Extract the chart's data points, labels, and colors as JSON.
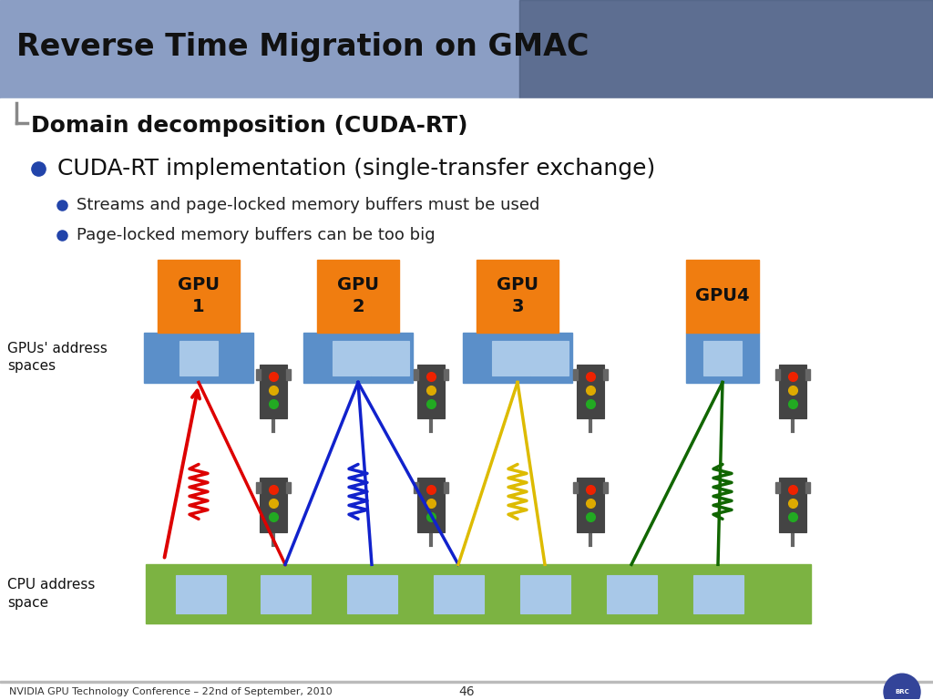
{
  "title": "Reverse Time Migration on GMAC",
  "subtitle": "Domain decomposition (CUDA-RT)",
  "bullet1": "CUDA-RT implementation (single-transfer exchange)",
  "bullet2": "Streams and page-locked memory buffers must be used",
  "bullet3": "Page-locked memory buffers can be too big",
  "footer_left": "NVIDIA GPU Technology Conference – 22nd of September, 2010",
  "footer_center": "46",
  "gpu_labels": [
    "GPU\n1",
    "GPU\n2",
    "GPU\n3",
    "GPU4"
  ],
  "gpu_color": "#F07D10",
  "gpu_base_color": "#5B8FC9",
  "gpu_slot_color": "#A8C8E8",
  "cpu_color": "#7CB342",
  "cpu_slot_color": "#A8C8E8",
  "bg_color": "#FFFFFF",
  "header_bg": "#8B9EC4",
  "title_color": "#111111",
  "subtitle_color": "#111111",
  "tl_body": "#444444",
  "tl_border": "#888888",
  "tl_red": "#EE2200",
  "tl_yellow": "#DDAA00",
  "tl_green": "#22AA22",
  "line_red": "#DD0000",
  "line_blue": "#1122CC",
  "line_yellow": "#DDBB00",
  "line_green": "#116600"
}
